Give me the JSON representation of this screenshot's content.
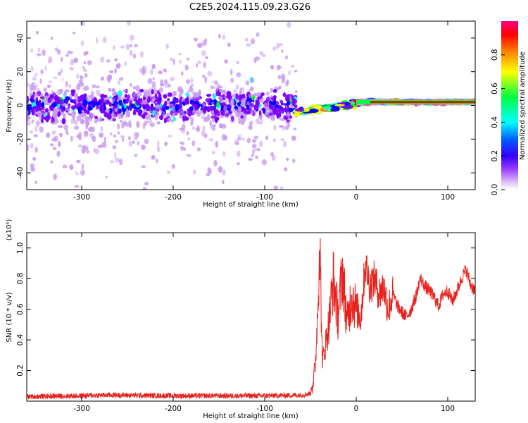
{
  "figure": {
    "title": "C2E5.2024.115.09.23.G26"
  },
  "chart_data": [
    {
      "type": "heatmap",
      "xlabel": "Height of straight line (km)",
      "ylabel": "Frequency (Hz)",
      "xlim": [
        -360,
        130
      ],
      "ylim": [
        -50,
        50
      ],
      "xticks": [
        -300,
        -200,
        -100,
        0,
        100
      ],
      "yticks": [
        -40,
        -20,
        0,
        20,
        40
      ],
      "colorbar": {
        "label": "Normalized spectral amplitude",
        "range": [
          0,
          1
        ],
        "ticks": [
          "0.0",
          "0.2",
          "0.4",
          "0.6",
          "0.8"
        ],
        "colors": [
          "#ffffff",
          "#c89bf0",
          "#7a00ff",
          "#0000ff",
          "#00ffff",
          "#00ff00",
          "#ffff00",
          "#ff8800",
          "#ff0000",
          "#ff0080"
        ]
      },
      "description_regions": [
        {
          "x_range": [
            -360,
            -65
          ],
          "center_hz": 0,
          "spread_hz": 12,
          "amplitude": 0.3
        },
        {
          "x_range": [
            -65,
            0
          ],
          "center_hz": -4,
          "spread_hz": 2,
          "amplitude": 0.7
        },
        {
          "x_range": [
            0,
            130
          ],
          "center_hz": 2,
          "spread_hz": 1.5,
          "amplitude": 0.85
        }
      ]
    },
    {
      "type": "line",
      "xlabel": "Height of straight line (km)",
      "ylabel": "SNR (10 * v/v)",
      "yscale_label": "(x10⁴)",
      "xlim": [
        -360,
        130
      ],
      "ylim": [
        0,
        1.1
      ],
      "xticks": [
        -300,
        -200,
        -100,
        0,
        100
      ],
      "yticks": [
        "0.2",
        "0.4",
        "0.6",
        "0.8",
        "1.0"
      ],
      "series": [
        {
          "color": "#e8211c",
          "points": [
            [
              -360,
              0.03
            ],
            [
              -300,
              0.035
            ],
            [
              -270,
              0.04
            ],
            [
              -200,
              0.035
            ],
            [
              -150,
              0.035
            ],
            [
              -100,
              0.035
            ],
            [
              -60,
              0.04
            ],
            [
              -50,
              0.05
            ],
            [
              -45,
              0.2
            ],
            [
              -42,
              0.6
            ],
            [
              -40,
              1.08
            ],
            [
              -37,
              0.25
            ],
            [
              -30,
              0.5
            ],
            [
              -25,
              0.8
            ],
            [
              -20,
              0.55
            ],
            [
              -15,
              0.85
            ],
            [
              -10,
              0.5
            ],
            [
              -5,
              0.7
            ],
            [
              0,
              0.6
            ],
            [
              5,
              0.55
            ],
            [
              10,
              0.9
            ],
            [
              15,
              0.75
            ],
            [
              20,
              0.8
            ],
            [
              25,
              0.7
            ],
            [
              30,
              0.75
            ],
            [
              35,
              0.6
            ],
            [
              40,
              0.7
            ],
            [
              45,
              0.62
            ],
            [
              50,
              0.58
            ],
            [
              55,
              0.55
            ],
            [
              60,
              0.6
            ],
            [
              65,
              0.68
            ],
            [
              70,
              0.8
            ],
            [
              75,
              0.75
            ],
            [
              80,
              0.72
            ],
            [
              85,
              0.68
            ],
            [
              90,
              0.62
            ],
            [
              95,
              0.7
            ],
            [
              100,
              0.72
            ],
            [
              105,
              0.65
            ],
            [
              110,
              0.72
            ],
            [
              115,
              0.8
            ],
            [
              120,
              0.86
            ],
            [
              125,
              0.76
            ],
            [
              130,
              0.72
            ]
          ]
        }
      ]
    }
  ]
}
